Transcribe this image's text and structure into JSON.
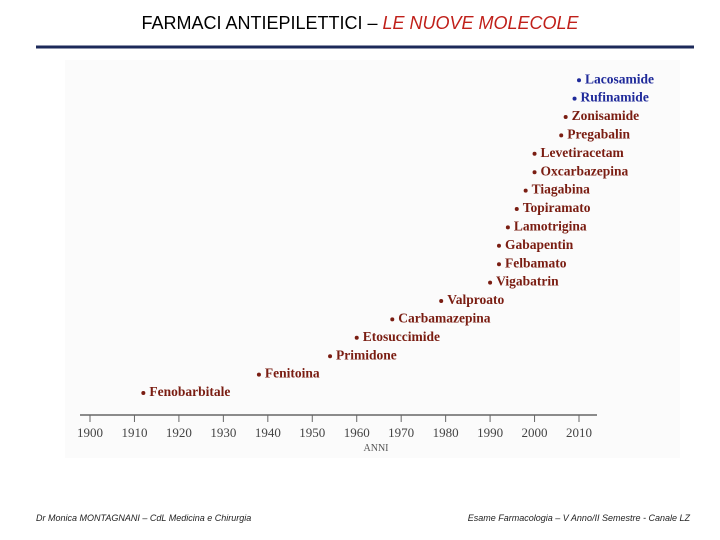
{
  "slide": {
    "title": "FARMACI  ANTIEPILETTICI – ",
    "title_highlight": "LE NUOVE MOLECOLE",
    "footer_left": "Dr Monica MONTAGNANI – CdL Medicina e Chirurgia",
    "footer_right": "Esame Farmacologia – V Anno/II Semestre - Canale LZ"
  },
  "chart_data": {
    "type": "timeline",
    "xlabel": "ANNI",
    "categories": [
      "Fenobarbitale",
      "Fenitoina",
      "Primidone",
      "Etosuccimide",
      "Carbamazepina",
      "Valproato",
      "Vigabatrin",
      "Felbamato",
      "Gabapentin",
      "Lamotrigina",
      "Topiramato",
      "Tiagabina",
      "Oxcarbazepina",
      "Levetiracetam",
      "Pregabalin",
      "Zonisamide",
      "Rufinamide",
      "Lacosamide"
    ],
    "x": [
      1912,
      1938,
      1954,
      1960,
      1968,
      1979,
      1990,
      1992,
      1992,
      1994,
      1996,
      1998,
      2000,
      2000,
      2006,
      2007,
      2009,
      2010
    ],
    "colors": [
      "#7a1d12",
      "#7a1d12",
      "#7a1d12",
      "#7a1d12",
      "#7a1d12",
      "#7a1d12",
      "#7a1d12",
      "#7a1d12",
      "#7a1d12",
      "#7a1d12",
      "#7a1d12",
      "#7a1d12",
      "#7a1d12",
      "#7a1d12",
      "#7a1d12",
      "#7a1d12",
      "#1f2a9a",
      "#1f2a9a"
    ],
    "xlim": [
      1900,
      2010
    ],
    "xticks": [
      1900,
      1910,
      1920,
      1930,
      1940,
      1950,
      1960,
      1970,
      1980,
      1990,
      2000,
      2010
    ]
  }
}
